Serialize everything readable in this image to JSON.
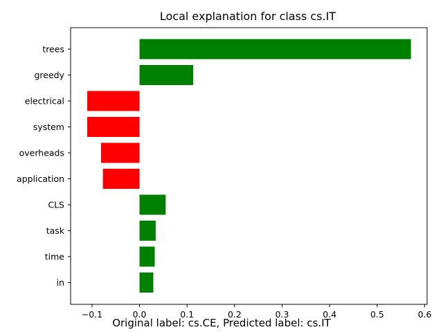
{
  "chart_data": {
    "type": "bar",
    "orientation": "horizontal",
    "title": "Local explanation for class cs.IT",
    "xlabel": "",
    "ylabel": "",
    "categories": [
      "trees",
      "greedy",
      "electrical",
      "system",
      "overheads",
      "application",
      "CLS",
      "task",
      "time",
      "in"
    ],
    "values": [
      0.571,
      0.113,
      -0.11,
      -0.11,
      -0.081,
      -0.077,
      0.055,
      0.034,
      0.032,
      0.029
    ],
    "xlim": [
      -0.145,
      0.605
    ],
    "xticks": [
      -0.1,
      0.0,
      0.1,
      0.2,
      0.3,
      0.4,
      0.5,
      0.6
    ],
    "xtick_labels": [
      "−0.1",
      "0.0",
      "0.1",
      "0.2",
      "0.3",
      "0.4",
      "0.5",
      "0.6"
    ],
    "grid": false,
    "colors": {
      "positive": "#008000",
      "negative": "#ff0000"
    }
  },
  "caption": "Original label: cs.CE, Predicted label: cs.IT"
}
